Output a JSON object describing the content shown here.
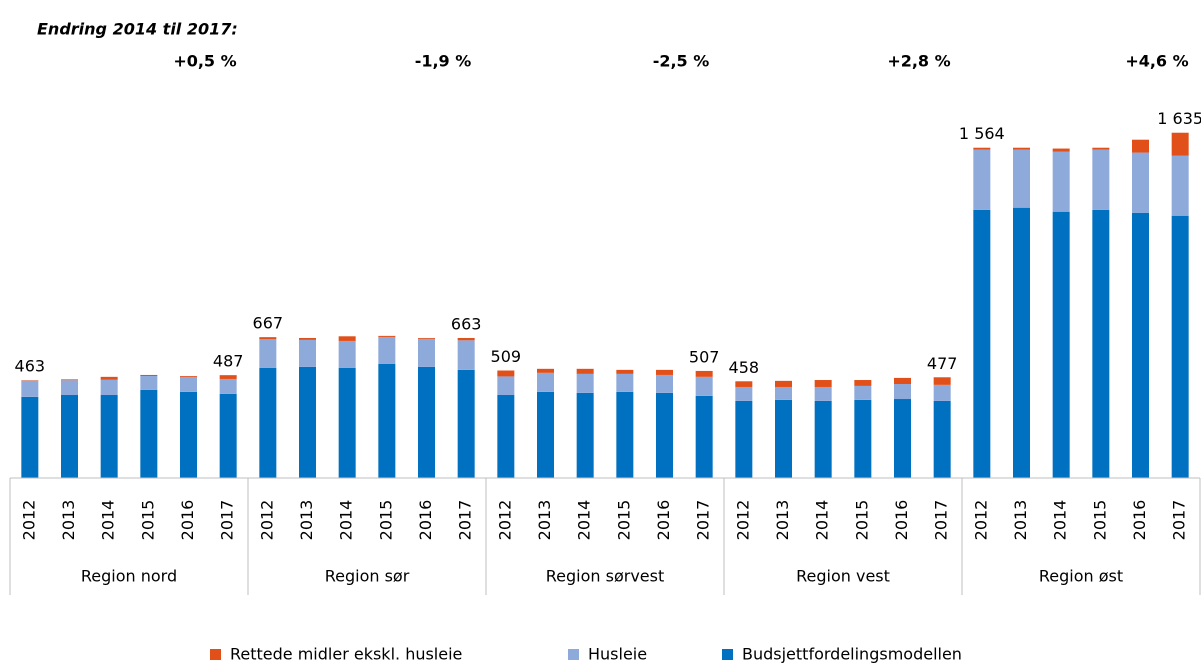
{
  "chart_data": {
    "type": "bar",
    "stacked": true,
    "annotation_title": "Endring 2014 til 2017:",
    "changes": [
      {
        "value": 0.5,
        "label": "+0,5 %",
        "color": "#000000"
      },
      {
        "value": -1.9,
        "label": "-1,9 %",
        "color": "#ff0000"
      },
      {
        "value": -2.5,
        "label": "-2,5 %",
        "color": "#ff0000"
      },
      {
        "value": 2.8,
        "label": "+2,8 %",
        "color": "#000000"
      },
      {
        "value": 4.6,
        "label": "+4,6 %",
        "color": "#000000"
      }
    ],
    "groups": [
      {
        "name": "Region nord",
        "categories": [
          "2012",
          "2013",
          "2014",
          "2015",
          "2016",
          "2017"
        ]
      },
      {
        "name": "Region sør",
        "categories": [
          "2012",
          "2013",
          "2014",
          "2015",
          "2016",
          "2017"
        ]
      },
      {
        "name": "Region sørvest",
        "categories": [
          "2012",
          "2013",
          "2014",
          "2015",
          "2016",
          "2017"
        ]
      },
      {
        "name": "Region vest",
        "categories": [
          "2012",
          "2013",
          "2014",
          "2015",
          "2016",
          "2017"
        ]
      },
      {
        "name": "Region øst",
        "categories": [
          "2012",
          "2013",
          "2014",
          "2015",
          "2016",
          "2017"
        ]
      }
    ],
    "series": [
      {
        "name": "Rettede midler ekskl. husleie",
        "color": "#e2501a",
        "values": [
          2,
          4,
          14,
          5,
          4,
          18,
          10,
          9,
          22,
          5,
          4,
          11,
          28,
          19,
          24,
          19,
          24,
          28,
          27,
          29,
          33,
          28,
          29,
          36,
          9,
          9,
          15,
          9,
          61,
          109
        ]
      },
      {
        "name": "Husleie",
        "color": "#8eaadb",
        "values": [
          77,
          70,
          72,
          66,
          71,
          71,
          136,
          128,
          128,
          128,
          133,
          140,
          88,
          90,
          90,
          85,
          85,
          90,
          66,
          61,
          66,
          66,
          71,
          76,
          285,
          275,
          284,
          285,
          285,
          284
        ]
      },
      {
        "name": "Budsjettfordelingsmodellen",
        "color": "#0070c0",
        "values": [
          384,
          393,
          393,
          417,
          408,
          398,
          521,
          526,
          521,
          540,
          526,
          512,
          393,
          408,
          403,
          408,
          403,
          389,
          365,
          370,
          365,
          370,
          374,
          365,
          1270,
          1280,
          1261,
          1270,
          1256,
          1242
        ]
      }
    ],
    "totals": [
      463,
      null,
      null,
      null,
      null,
      487,
      667,
      null,
      null,
      null,
      null,
      663,
      509,
      null,
      null,
      null,
      null,
      507,
      458,
      null,
      null,
      null,
      null,
      477,
      1564,
      null,
      null,
      null,
      null,
      1635
    ],
    "total_labels": [
      "463",
      null,
      null,
      null,
      null,
      "487",
      "667",
      null,
      null,
      null,
      null,
      "663",
      "509",
      null,
      null,
      null,
      null,
      "507",
      "458",
      null,
      null,
      null,
      null,
      "477",
      "1 564",
      null,
      null,
      null,
      null,
      "1 635"
    ],
    "ylim": [
      0,
      1700
    ]
  }
}
